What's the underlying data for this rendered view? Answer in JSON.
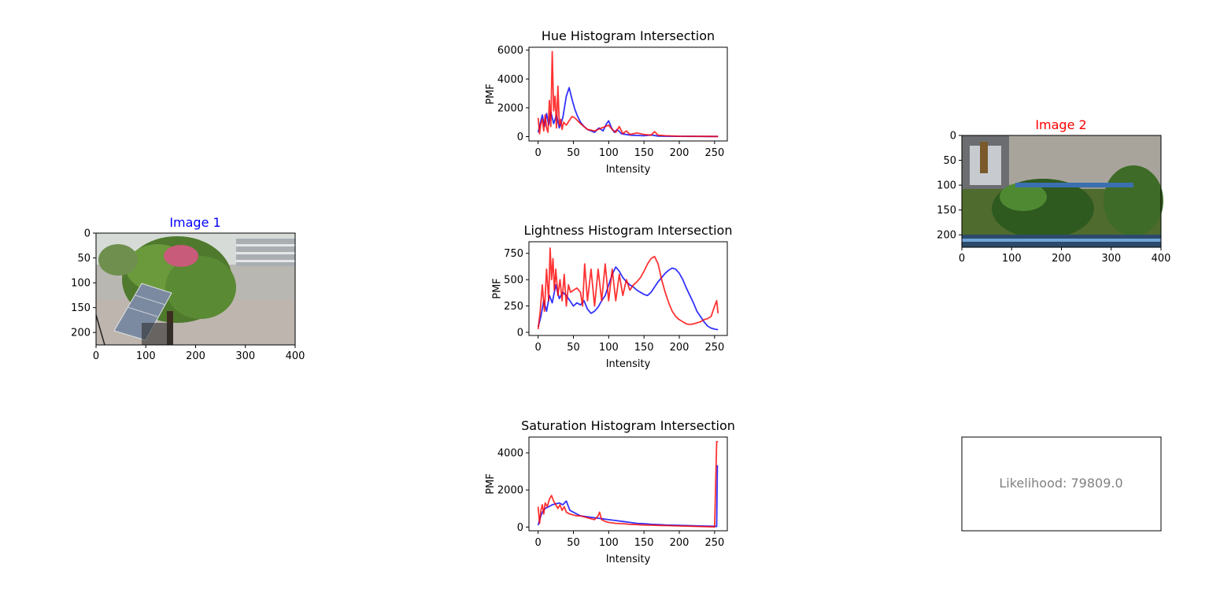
{
  "colors": {
    "series_blue": "#0000ff",
    "series_red": "#ff0000",
    "axis": "#000000",
    "likelihood_text": "#808080"
  },
  "image1": {
    "title": "Image 1",
    "title_color": "#0000ff",
    "xlim": [
      0,
      400
    ],
    "ylim": [
      0,
      225
    ],
    "xticks": [
      0,
      100,
      200,
      300,
      400
    ],
    "yticks": [
      0,
      50,
      100,
      150,
      200
    ],
    "description_icon": "photo-garden-solar-panel"
  },
  "image2": {
    "title": "Image 2",
    "title_color": "#ff0000",
    "xlim": [
      0,
      400
    ],
    "ylim": [
      0,
      225
    ],
    "xticks": [
      0,
      100,
      200,
      300,
      400
    ],
    "yticks": [
      0,
      50,
      100,
      150,
      200
    ],
    "description_icon": "photo-aerial-garden"
  },
  "likelihood": {
    "text": "Likelihood: 79809.0"
  },
  "chart_data": [
    {
      "type": "line",
      "title": "Hue Histogram Intersection",
      "xlabel": "Intensity",
      "ylabel": "PMF",
      "xlim": [
        -13,
        268
      ],
      "ylim": [
        -300,
        6200
      ],
      "xticks": [
        0,
        50,
        100,
        150,
        200,
        250
      ],
      "yticks": [
        0,
        2000,
        4000,
        6000
      ],
      "series": [
        {
          "color": "#0000ff",
          "x": [
            0,
            3,
            6,
            9,
            12,
            15,
            18,
            22,
            26,
            30,
            35,
            40,
            44,
            48,
            52,
            56,
            60,
            65,
            70,
            75,
            80,
            86,
            92,
            97,
            100,
            104,
            108,
            112,
            118,
            125,
            132,
            140,
            150,
            160,
            170,
            180,
            200,
            220,
            240,
            255
          ],
          "y": [
            300,
            900,
            1500,
            700,
            1600,
            800,
            1700,
            900,
            1500,
            600,
            1300,
            2800,
            3400,
            2600,
            1900,
            1400,
            1000,
            700,
            500,
            400,
            300,
            600,
            400,
            900,
            1100,
            600,
            300,
            500,
            200,
            150,
            100,
            80,
            60,
            120,
            40,
            30,
            20,
            15,
            10,
            10
          ]
        },
        {
          "color": "#ff0000",
          "x": [
            0,
            2,
            4,
            6,
            8,
            10,
            12,
            14,
            16,
            18,
            20,
            22,
            24,
            26,
            28,
            30,
            32,
            34,
            36,
            40,
            44,
            48,
            52,
            56,
            60,
            65,
            70,
            80,
            90,
            100,
            105,
            110,
            115,
            120,
            125,
            130,
            140,
            150,
            160,
            165,
            170,
            180,
            200,
            220,
            240,
            255
          ],
          "y": [
            1300,
            200,
            900,
            1200,
            400,
            1500,
            600,
            300,
            2500,
            700,
            5900,
            1800,
            2800,
            600,
            3500,
            800,
            1200,
            500,
            1000,
            800,
            1100,
            1400,
            1300,
            1100,
            900,
            700,
            500,
            400,
            600,
            800,
            500,
            300,
            700,
            200,
            400,
            150,
            250,
            150,
            100,
            350,
            100,
            60,
            30,
            20,
            15,
            10
          ]
        }
      ]
    },
    {
      "type": "line",
      "title": "Lightness Histogram Intersection",
      "xlabel": "Intensity",
      "ylabel": "PMF",
      "xlim": [
        -13,
        268
      ],
      "ylim": [
        -30,
        860
      ],
      "xticks": [
        0,
        50,
        100,
        150,
        200,
        250
      ],
      "yticks": [
        0,
        250,
        500,
        750
      ],
      "series": [
        {
          "color": "#0000ff",
          "x": [
            0,
            4,
            8,
            12,
            16,
            20,
            25,
            30,
            35,
            40,
            45,
            50,
            55,
            60,
            65,
            70,
            75,
            80,
            85,
            90,
            95,
            100,
            105,
            110,
            115,
            120,
            125,
            130,
            135,
            140,
            145,
            150,
            155,
            160,
            165,
            170,
            175,
            180,
            185,
            190,
            195,
            200,
            205,
            210,
            215,
            220,
            225,
            230,
            235,
            240,
            245,
            250,
            255
          ],
          "y": [
            50,
            150,
            300,
            200,
            350,
            280,
            450,
            320,
            380,
            350,
            300,
            250,
            280,
            260,
            300,
            220,
            180,
            200,
            240,
            300,
            350,
            450,
            550,
            620,
            580,
            520,
            480,
            450,
            430,
            400,
            380,
            360,
            350,
            380,
            430,
            480,
            520,
            560,
            590,
            610,
            600,
            560,
            500,
            420,
            350,
            280,
            200,
            150,
            100,
            60,
            40,
            30,
            25
          ]
        },
        {
          "color": "#ff0000",
          "x": [
            0,
            3,
            6,
            9,
            12,
            15,
            17,
            19,
            21,
            23,
            25,
            28,
            31,
            34,
            37,
            40,
            43,
            46,
            50,
            55,
            60,
            63,
            66,
            70,
            75,
            80,
            85,
            90,
            95,
            100,
            105,
            110,
            115,
            120,
            125,
            130,
            135,
            140,
            145,
            150,
            155,
            160,
            165,
            170,
            175,
            180,
            185,
            190,
            195,
            200,
            205,
            210,
            215,
            220,
            225,
            230,
            235,
            240,
            245,
            250,
            253,
            255
          ],
          "y": [
            30,
            200,
            450,
            200,
            600,
            300,
            800,
            500,
            700,
            400,
            600,
            350,
            500,
            300,
            550,
            250,
            450,
            380,
            400,
            420,
            380,
            250,
            650,
            300,
            600,
            250,
            600,
            300,
            650,
            300,
            600,
            300,
            550,
            350,
            500,
            400,
            450,
            480,
            520,
            580,
            650,
            700,
            720,
            650,
            500,
            380,
            280,
            200,
            150,
            120,
            100,
            80,
            75,
            80,
            90,
            100,
            120,
            130,
            150,
            250,
            300,
            180
          ]
        }
      ]
    },
    {
      "type": "line",
      "title": "Saturation Histogram Intersection",
      "xlabel": "Intensity",
      "ylabel": "PMF",
      "xlim": [
        -13,
        268
      ],
      "ylim": [
        -200,
        4850
      ],
      "xticks": [
        0,
        50,
        100,
        150,
        200,
        250
      ],
      "yticks": [
        0,
        2000,
        4000
      ],
      "series": [
        {
          "color": "#0000ff",
          "x": [
            0,
            3,
            6,
            10,
            15,
            20,
            25,
            30,
            35,
            40,
            45,
            50,
            55,
            60,
            70,
            80,
            90,
            100,
            110,
            120,
            130,
            140,
            150,
            160,
            170,
            180,
            190,
            200,
            210,
            220,
            230,
            240,
            250,
            253,
            254,
            255
          ],
          "y": [
            100,
            500,
            800,
            1000,
            1100,
            1200,
            1250,
            1300,
            1200,
            1400,
            900,
            800,
            700,
            600,
            550,
            500,
            450,
            400,
            350,
            300,
            250,
            200,
            180,
            150,
            130,
            110,
            100,
            90,
            80,
            70,
            60,
            50,
            40,
            30,
            3300,
            3300
          ]
        },
        {
          "color": "#ff0000",
          "x": [
            0,
            2,
            4,
            6,
            8,
            10,
            13,
            16,
            19,
            22,
            25,
            28,
            31,
            34,
            37,
            40,
            45,
            50,
            55,
            60,
            65,
            70,
            75,
            80,
            85,
            87,
            90,
            95,
            100,
            110,
            120,
            130,
            140,
            150,
            160,
            170,
            180,
            190,
            200,
            210,
            220,
            230,
            240,
            250,
            253,
            254,
            255
          ],
          "y": [
            1100,
            200,
            900,
            1200,
            700,
            1300,
            1100,
            1500,
            1700,
            1400,
            1200,
            1000,
            1200,
            900,
            1100,
            800,
            700,
            650,
            600,
            600,
            550,
            500,
            450,
            400,
            600,
            800,
            400,
            300,
            250,
            200,
            180,
            150,
            130,
            110,
            100,
            90,
            80,
            70,
            60,
            50,
            40,
            30,
            20,
            10,
            4600,
            4600,
            4600
          ]
        }
      ]
    }
  ]
}
